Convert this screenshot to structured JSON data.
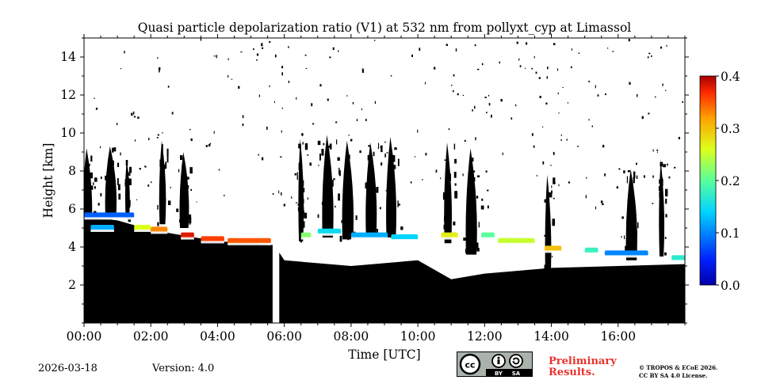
{
  "chart_data": {
    "type": "heatmap",
    "title": "Quasi particle depolarization ratio (V1) at 532 nm from pollyxt_cyp at Limassol",
    "xlabel": "Time [UTC]",
    "ylabel": "Height [km]",
    "xlim": [
      0,
      18
    ],
    "ylim": [
      0,
      15
    ],
    "x_ticks": [
      0,
      2,
      4,
      6,
      8,
      10,
      12,
      14,
      16
    ],
    "x_tick_labels": [
      "00:00",
      "02:00",
      "04:00",
      "06:00",
      "08:00",
      "10:00",
      "12:00",
      "14:00",
      "16:00"
    ],
    "y_ticks": [
      2,
      4,
      6,
      8,
      10,
      12,
      14
    ],
    "y_tick_labels": [
      "2",
      "4",
      "6",
      "8",
      "10",
      "12",
      "14"
    ],
    "colorbar": {
      "range": [
        0.0,
        0.4
      ],
      "ticks": [
        0.0,
        0.1,
        0.2,
        0.3,
        0.4
      ],
      "tick_labels": [
        "0.0",
        "0.1",
        "0.2",
        "0.3",
        "0.4"
      ],
      "colormap": "jet"
    },
    "colors": {
      "no_signal": "#000000",
      "background": "#ffffff"
    },
    "data_gap_hours": [
      5.65,
      5.85
    ],
    "boundary_layer_top_km": [
      [
        0,
        5.6
      ],
      [
        1,
        5.4
      ],
      [
        2,
        4.9
      ],
      [
        3,
        4.6
      ],
      [
        4,
        4.3
      ],
      [
        5,
        4.2
      ],
      [
        5.7,
        4.1
      ],
      [
        6,
        3.3
      ],
      [
        8,
        3.0
      ],
      [
        10,
        3.3
      ],
      [
        11,
        2.3
      ],
      [
        12,
        2.6
      ],
      [
        14,
        2.9
      ],
      [
        16,
        3.0
      ],
      [
        18,
        3.1
      ]
    ],
    "cloud_columns": [
      {
        "t": 0.1,
        "base_km": 5.0,
        "top_km": 9.2
      },
      {
        "t": 0.8,
        "base_km": 5.6,
        "top_km": 9.3
      },
      {
        "t": 1.3,
        "base_km": 5.5,
        "top_km": 8.6
      },
      {
        "t": 2.35,
        "base_km": 5.2,
        "top_km": 9.6
      },
      {
        "t": 3.0,
        "base_km": 5.0,
        "top_km": 9.0
      },
      {
        "t": 6.5,
        "base_km": 4.3,
        "top_km": 9.7
      },
      {
        "t": 7.3,
        "base_km": 4.5,
        "top_km": 9.9
      },
      {
        "t": 7.9,
        "base_km": 4.4,
        "top_km": 9.6
      },
      {
        "t": 8.6,
        "base_km": 4.6,
        "top_km": 9.5
      },
      {
        "t": 9.2,
        "base_km": 4.5,
        "top_km": 9.8
      },
      {
        "t": 10.9,
        "base_km": 4.2,
        "top_km": 9.5
      },
      {
        "t": 11.6,
        "base_km": 3.6,
        "top_km": 9.2
      },
      {
        "t": 13.9,
        "base_km": 2.2,
        "top_km": 7.8
      },
      {
        "t": 16.4,
        "base_km": 3.3,
        "top_km": 8.1
      },
      {
        "t": 17.3,
        "base_km": 3.5,
        "top_km": 8.6
      }
    ],
    "depol_patches": [
      {
        "t0": 0.0,
        "t1": 1.5,
        "h": 5.65,
        "value": 0.08
      },
      {
        "t0": 0.2,
        "t1": 0.9,
        "h": 5.0,
        "value": 0.12
      },
      {
        "t0": 1.5,
        "t1": 2.0,
        "h": 5.0,
        "value": 0.26
      },
      {
        "t0": 2.0,
        "t1": 2.5,
        "h": 4.9,
        "value": 0.33
      },
      {
        "t0": 2.9,
        "t1": 3.3,
        "h": 4.6,
        "value": 0.38
      },
      {
        "t0": 3.5,
        "t1": 4.2,
        "h": 4.4,
        "value": 0.36
      },
      {
        "t0": 4.3,
        "t1": 5.6,
        "h": 4.3,
        "value": 0.35
      },
      {
        "t0": 6.5,
        "t1": 6.8,
        "h": 4.6,
        "value": 0.22
      },
      {
        "t0": 7.0,
        "t1": 7.7,
        "h": 4.8,
        "value": 0.15
      },
      {
        "t0": 8.0,
        "t1": 9.1,
        "h": 4.6,
        "value": 0.12
      },
      {
        "t0": 9.2,
        "t1": 10.0,
        "h": 4.5,
        "value": 0.14
      },
      {
        "t0": 10.7,
        "t1": 11.2,
        "h": 4.6,
        "value": 0.27
      },
      {
        "t0": 11.9,
        "t1": 12.3,
        "h": 4.6,
        "value": 0.2
      },
      {
        "t0": 12.4,
        "t1": 13.5,
        "h": 4.3,
        "value": 0.25
      },
      {
        "t0": 13.8,
        "t1": 14.3,
        "h": 3.9,
        "value": 0.3
      },
      {
        "t0": 15.0,
        "t1": 15.4,
        "h": 3.8,
        "value": 0.18
      },
      {
        "t0": 15.6,
        "t1": 16.9,
        "h": 3.65,
        "value": 0.1
      },
      {
        "t0": 17.6,
        "t1": 18.0,
        "h": 3.4,
        "value": 0.17
      }
    ]
  },
  "footer": {
    "date": "2026-03-18",
    "version": "Version: 4.0",
    "cc_by": "BY",
    "cc_sa": "SA",
    "preliminary_line1": "Preliminary",
    "preliminary_line2": "Results.",
    "copyright_line1": "© TROPOS & ECoE 2026.",
    "copyright_line2": "CC BY SA 4.0 License."
  }
}
